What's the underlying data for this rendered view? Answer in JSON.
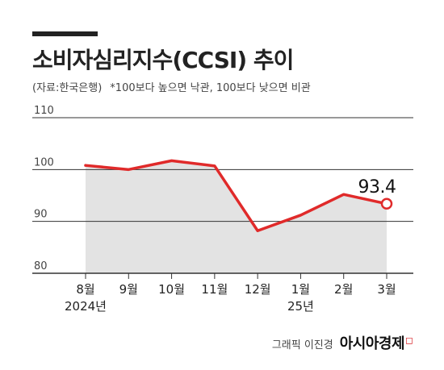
{
  "title": "소비자심리지수(CCSI) 추이",
  "source": "(자료:한국은행)",
  "note": "*100보다 높으면 낙관, 100보다 낮으면 비관",
  "credit": {
    "byline": "그래픽 이진경",
    "brand": "아시아경제"
  },
  "chart_data": {
    "type": "line",
    "categories": [
      "8월",
      "9월",
      "10월",
      "11월",
      "12월",
      "1월",
      "2월",
      "3월"
    ],
    "year_labels": [
      "2024년",
      "",
      "",
      "",
      "",
      "25년",
      "",
      ""
    ],
    "values": [
      100.8,
      100.0,
      101.7,
      100.7,
      88.2,
      91.2,
      95.2,
      93.4
    ],
    "ylim": [
      80,
      110
    ],
    "yticks": [
      80,
      90,
      100,
      110
    ],
    "last_value_label": "93.4",
    "grid": true,
    "colors": {
      "line": "#e02a2a",
      "fill": "#e3e3e3",
      "grid": "#333333"
    }
  }
}
